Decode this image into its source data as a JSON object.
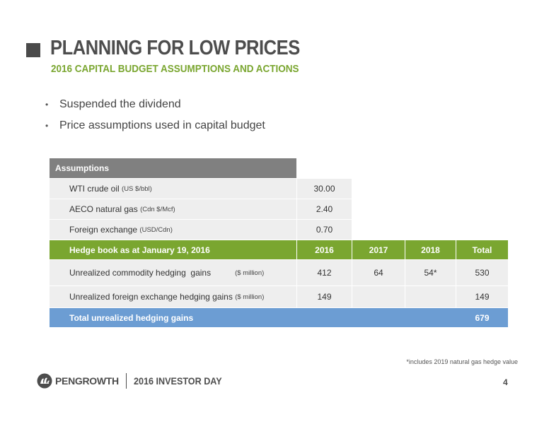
{
  "header": {
    "title": "PLANNING FOR LOW PRICES",
    "subtitle": "2016 CAPITAL BUDGET ASSUMPTIONS AND ACTIONS"
  },
  "bullets": [
    "Suspended the dividend",
    "Price assumptions used in capital budget"
  ],
  "table": {
    "assumptions_header": "Assumptions",
    "assumptions": [
      {
        "label": "WTI crude oil",
        "unit": "(US $/bbl)",
        "value": "30.00"
      },
      {
        "label": "AECO natural gas",
        "unit": "(Cdn $/Mcf)",
        "value": "2.40"
      },
      {
        "label": "Foreign exchange",
        "unit": "(USD/Cdn)",
        "value": "0.70"
      }
    ],
    "hedge_header": {
      "label": "Hedge book as at January 19, 2016",
      "cols": [
        "2016",
        "2017",
        "2018",
        "Total"
      ]
    },
    "hedge_rows": [
      {
        "label": "Unrealized commodity hedging  gains",
        "unit": "($ million)",
        "values": [
          "412",
          "64",
          "54*",
          "530"
        ]
      },
      {
        "label": "Unrealized foreign exchange hedging gains",
        "unit": "($ million)",
        "values": [
          "149",
          "",
          "",
          "149"
        ]
      }
    ],
    "total_row": {
      "label": "Total unrealized hedging gains",
      "value": "679"
    }
  },
  "footnote": "*includes 2019 natural gas hedge value",
  "footer": {
    "company": "PENGROWTH",
    "event": "2016 INVESTOR DAY",
    "page": "4"
  },
  "colors": {
    "accent_green": "#7aa630",
    "accent_blue": "#6c9dd3",
    "header_gray": "#808080"
  }
}
